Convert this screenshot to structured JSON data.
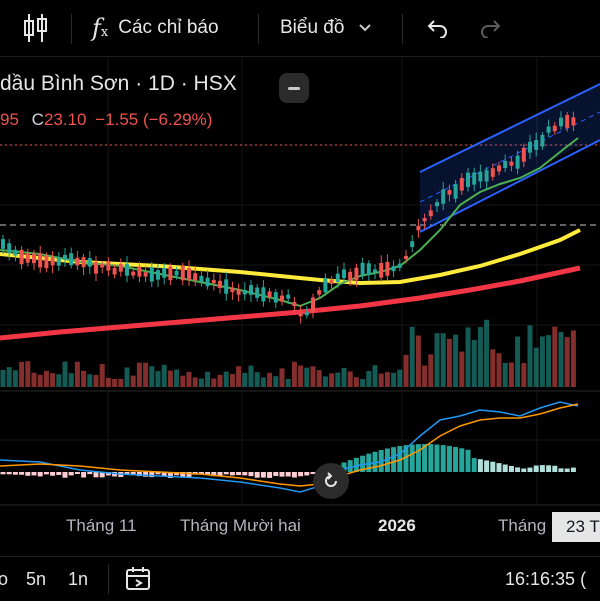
{
  "toolbar": {
    "indicators_label": "Các chỉ báo",
    "chart_type_label": "Biểu đồ"
  },
  "legend": {
    "title": "dầu Bình Sơn · 1D · HSX",
    "open_fragment": "95",
    "close_prefix": "C",
    "close_value": "23.10",
    "change": "−1.55 (−6.29%)"
  },
  "time_axis": {
    "labels": [
      "Tháng 11",
      "Tháng Mười hai",
      "2026",
      "Tháng"
    ],
    "badge": "23 T"
  },
  "bottom_bar": {
    "ranges": [
      "o",
      "5n",
      "1n"
    ],
    "clock": "16:16:35 ("
  },
  "colors": {
    "up": "#26a69a",
    "down": "#ef5350",
    "ma_short": "#4caf50",
    "ma_mid": "#ffeb3b",
    "ma_long": "#f23645",
    "channel": "#2962ff",
    "macd": "#2196f3",
    "signal": "#ff9800"
  },
  "chart_data": {
    "type": "candlestick",
    "timeframe": "1D",
    "last_close": 23.1,
    "last_change": -1.55,
    "last_change_pct": -6.29
  }
}
